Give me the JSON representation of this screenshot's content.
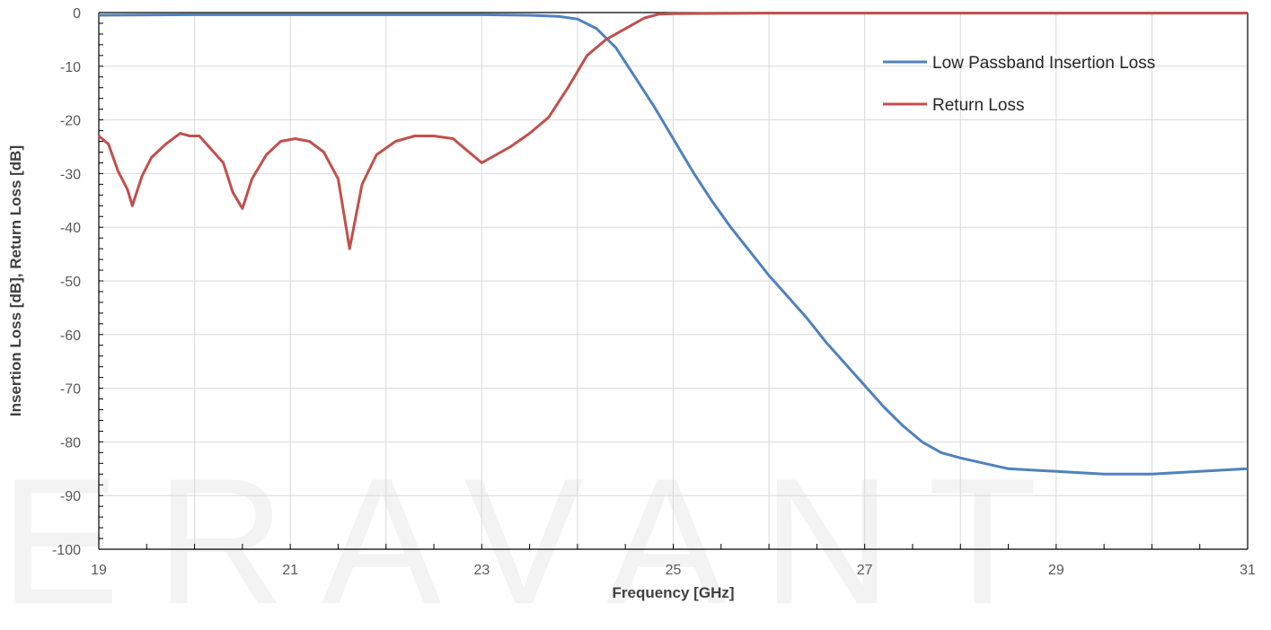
{
  "watermark": "ERAVANT",
  "chart_data": {
    "type": "line",
    "xlabel": "Frequency [GHz]",
    "ylabel": "Insertion Loss [dB], Return Loss [dB]",
    "xlim": [
      19,
      31
    ],
    "ylim": [
      -100,
      0
    ],
    "x_ticks": [
      19,
      21,
      23,
      25,
      27,
      29,
      31
    ],
    "y_ticks": [
      0,
      -10,
      -20,
      -30,
      -40,
      -50,
      -60,
      -70,
      -80,
      -90,
      -100
    ],
    "grid": true,
    "legend_position": "top-right",
    "series": [
      {
        "name": "Low Passband Insertion Loss",
        "color": "#4F81BD",
        "x": [
          19,
          20,
          21,
          22,
          23,
          23.5,
          23.8,
          24.0,
          24.2,
          24.4,
          24.6,
          24.8,
          25.0,
          25.2,
          25.4,
          25.6,
          25.8,
          26.0,
          26.2,
          26.4,
          26.6,
          26.8,
          27.0,
          27.2,
          27.4,
          27.6,
          27.8,
          28.0,
          28.5,
          29.0,
          29.5,
          30.0,
          30.5,
          31.0
        ],
        "values": [
          -0.5,
          -0.4,
          -0.4,
          -0.4,
          -0.4,
          -0.5,
          -0.7,
          -1.2,
          -3.0,
          -6.5,
          -12.0,
          -17.5,
          -23.5,
          -29.5,
          -35.0,
          -40.0,
          -44.5,
          -49.0,
          -53.0,
          -57.0,
          -61.5,
          -65.5,
          -69.5,
          -73.5,
          -77.0,
          -80.0,
          -82.0,
          -83.0,
          -85.0,
          -85.5,
          -86.0,
          -86.0,
          -85.5,
          -85.0
        ]
      },
      {
        "name": "Return Loss",
        "color": "#C0504D",
        "x": [
          19.0,
          19.1,
          19.2,
          19.3,
          19.35,
          19.45,
          19.55,
          19.7,
          19.85,
          19.95,
          20.05,
          20.15,
          20.3,
          20.4,
          20.5,
          20.6,
          20.75,
          20.9,
          21.05,
          21.2,
          21.35,
          21.5,
          21.62,
          21.75,
          21.9,
          22.1,
          22.3,
          22.5,
          22.7,
          22.9,
          23.0,
          23.15,
          23.3,
          23.5,
          23.7,
          23.9,
          24.1,
          24.3,
          24.5,
          24.7,
          24.85,
          25.0,
          26.0,
          27.0,
          28.0,
          29.0,
          30.0,
          31.0
        ],
        "values": [
          -23.0,
          -24.5,
          -29.5,
          -33.0,
          -36.0,
          -30.5,
          -27.0,
          -24.5,
          -22.5,
          -23.0,
          -23.0,
          -25.0,
          -28.0,
          -33.5,
          -36.5,
          -31.0,
          -26.5,
          -24.0,
          -23.5,
          -24.0,
          -26.0,
          -31.0,
          -44.0,
          -32.0,
          -26.5,
          -24.0,
          -23.0,
          -23.0,
          -23.5,
          -26.5,
          -28.0,
          -26.5,
          -25.0,
          -22.5,
          -19.5,
          -14.0,
          -8.0,
          -5.0,
          -3.0,
          -1.0,
          -0.3,
          -0.2,
          -0.1,
          -0.1,
          -0.1,
          -0.1,
          -0.1,
          -0.1
        ]
      }
    ]
  }
}
